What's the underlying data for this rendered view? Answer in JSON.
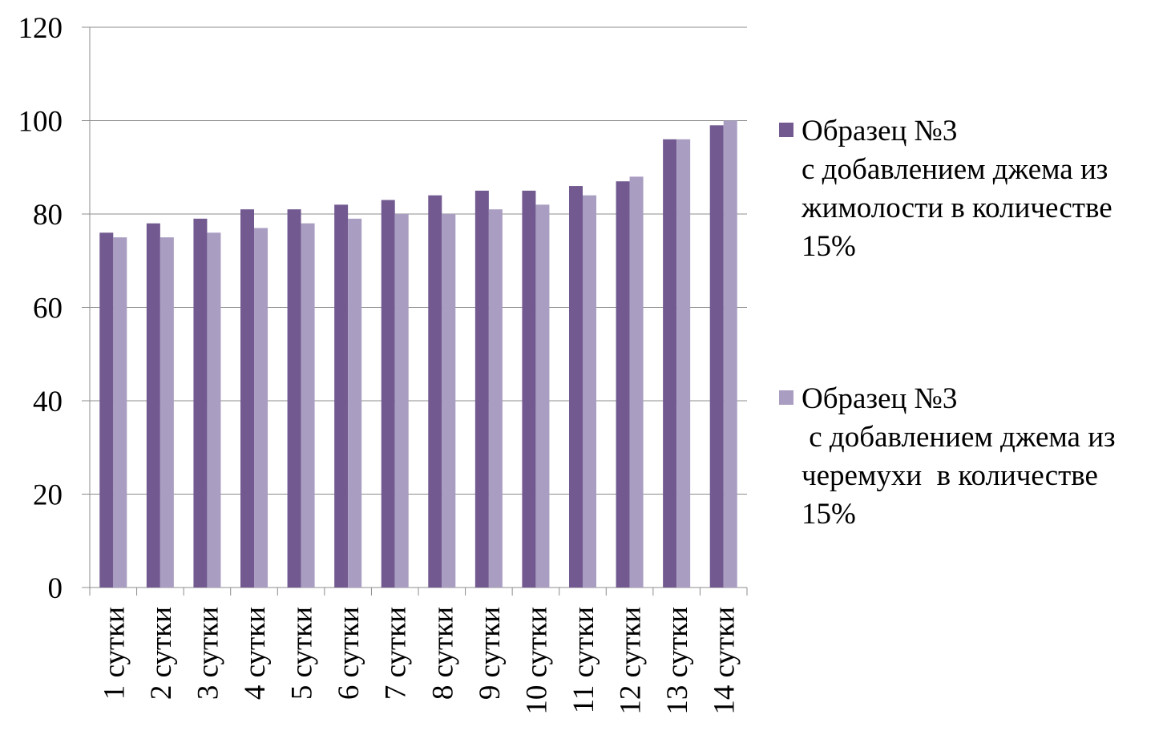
{
  "chart_data": {
    "type": "bar",
    "categories": [
      "1 сутки",
      "2 сутки",
      "3 сутки",
      "4 сутки",
      "5 сутки",
      "6 сутки",
      "7 сутки",
      "8 сутки",
      "9 сутки",
      "10 сутки",
      "11 сутки",
      "12 сутки",
      "13 сутки",
      "14 сутки"
    ],
    "series": [
      {
        "name": "Образец №3\nс добавлением джема из\nжимолости в количестве\n15%",
        "color": "#725a91",
        "values": [
          76,
          78,
          79,
          81,
          81,
          82,
          83,
          84,
          85,
          85,
          86,
          87,
          96,
          99
        ]
      },
      {
        "name": "Образец №3\n с добавлением джема из\nчеремухи  в количестве\n15%",
        "color": "#a99dc1",
        "values": [
          75,
          75,
          76,
          77,
          78,
          79,
          80,
          80,
          81,
          82,
          84,
          88,
          96,
          100
        ]
      }
    ],
    "ylim": [
      0,
      120
    ],
    "yticks": [
      0,
      20,
      40,
      60,
      80,
      100,
      120
    ],
    "grid": true,
    "legend": "right"
  }
}
